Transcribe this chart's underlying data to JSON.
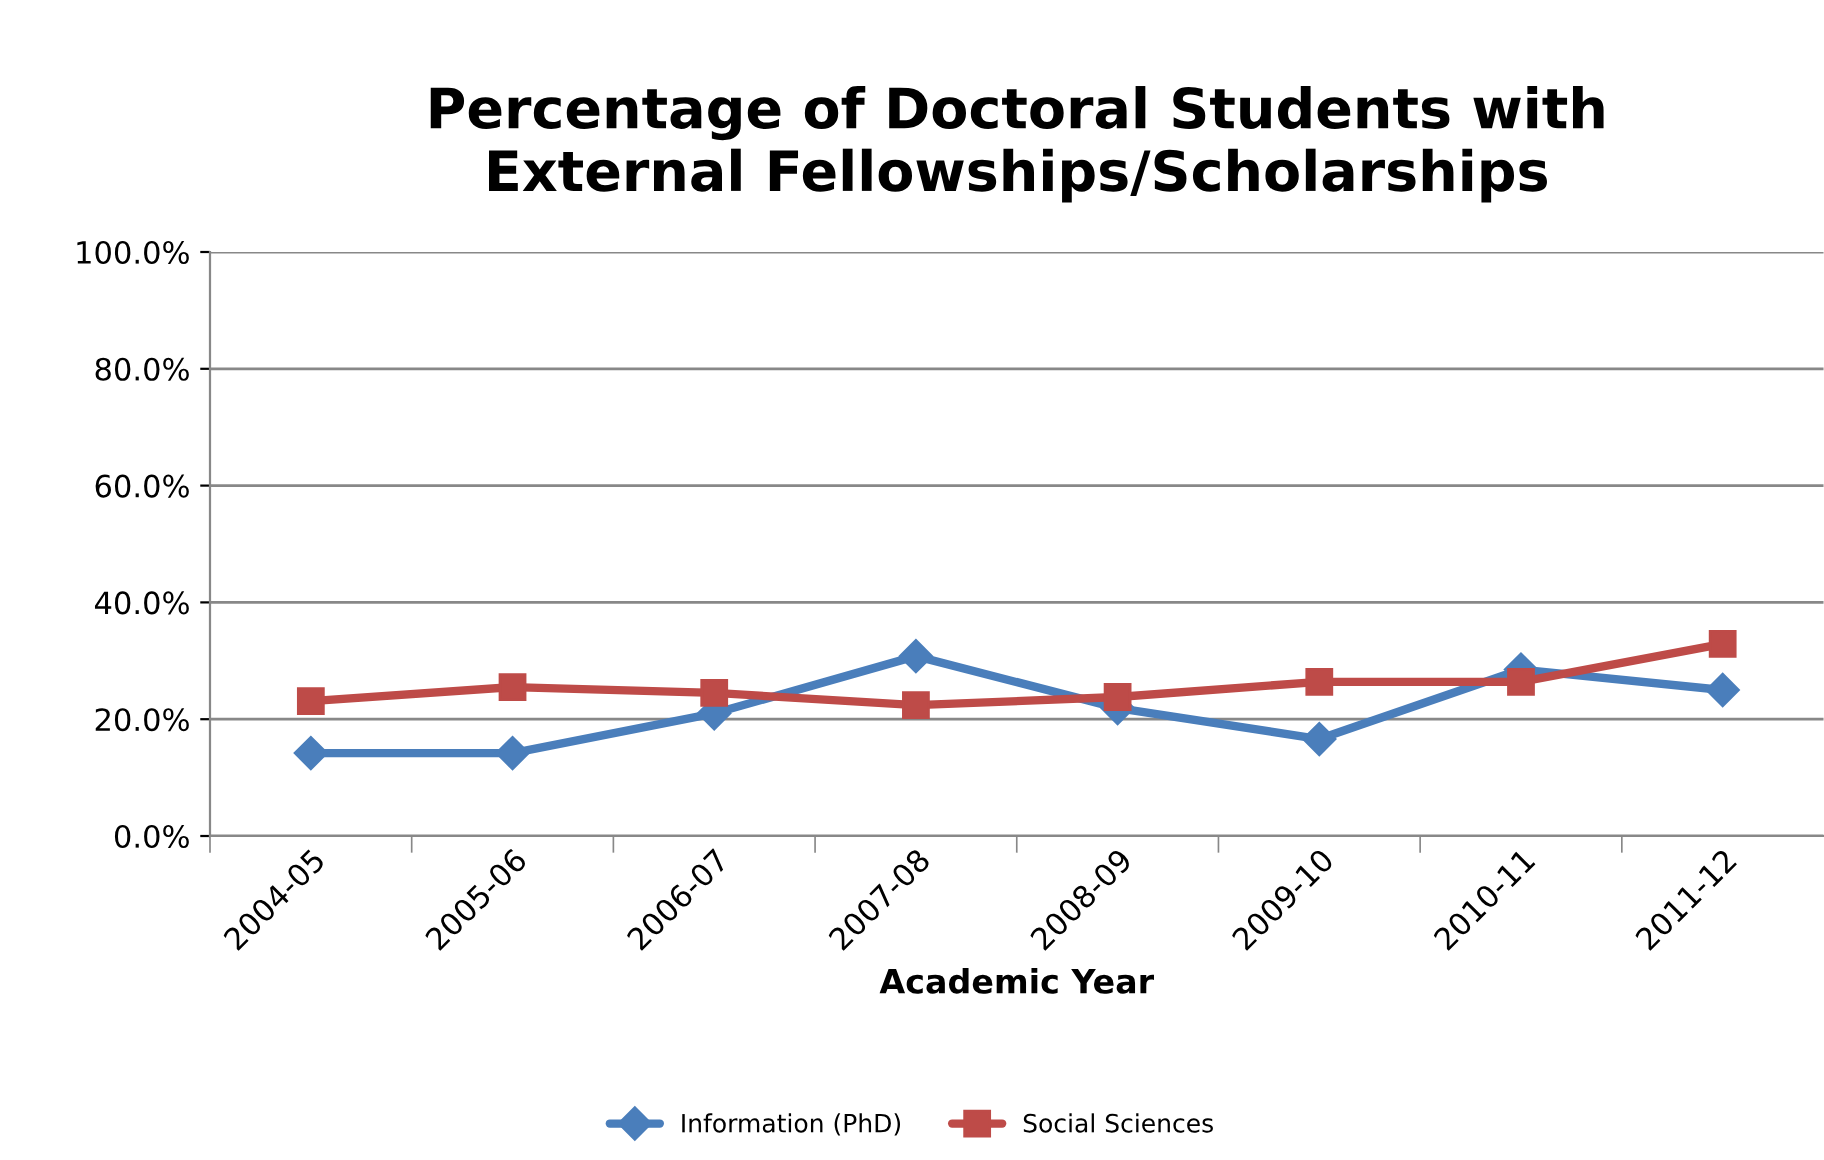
{
  "chart_data": {
    "type": "line",
    "title": "Percentage of Doctoral Students with\nExternal Fellowships/Scholarships",
    "xlabel": "Academic Year",
    "categories": [
      "2004-05",
      "2005-06",
      "2006-07",
      "2007-08",
      "2008-09",
      "2009-10",
      "2010-11",
      "2011-12"
    ],
    "series": [
      {
        "name": "Information (PhD)",
        "color": "#4a7ebb",
        "marker": "diamond",
        "values": [
          14.2,
          14.2,
          21.0,
          30.8,
          21.9,
          16.6,
          28.5,
          25.0
        ]
      },
      {
        "name": "Social Sciences",
        "color": "#be4b48",
        "marker": "square",
        "values": [
          23.1,
          25.5,
          24.5,
          22.4,
          23.8,
          26.4,
          26.4,
          32.9
        ]
      }
    ],
    "ylim": [
      0,
      100
    ],
    "yticks": [
      {
        "value": 0,
        "label": "0.0%"
      },
      {
        "value": 20,
        "label": "20.0%"
      },
      {
        "value": 40,
        "label": "40.0%"
      },
      {
        "value": 60,
        "label": "60.0%"
      },
      {
        "value": 80,
        "label": "80.0%"
      },
      {
        "value": 100,
        "label": "100.0%"
      }
    ],
    "grid": "y",
    "legend": "bottom",
    "line_style": "solid"
  }
}
